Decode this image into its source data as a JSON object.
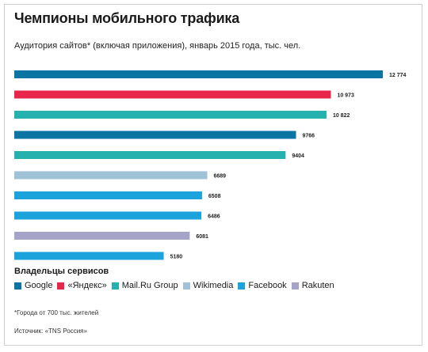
{
  "header": {
    "title": "Чемпионы мобильного трафика",
    "subtitle": "Аудитория сайтов* (включая приложения), январь 2015 года, тыс. чел."
  },
  "legend": {
    "title": "Владельцы сервисов",
    "items": [
      {
        "label": "Google",
        "color": "#0a74a3"
      },
      {
        "label": "«Яндекс»",
        "color": "#e8254b"
      },
      {
        "label": "Mail.Ru Group",
        "color": "#25b2ae"
      },
      {
        "label": "Wikimedia",
        "color": "#9fc2d6"
      },
      {
        "label": "Facebook",
        "color": "#1ca3dc"
      },
      {
        "label": "Rakuten",
        "color": "#a5a3c8"
      }
    ]
  },
  "footnote": "*Города от 700 тыс. жителей",
  "source": "Источник: «TNS Россия»",
  "chart_data": {
    "type": "bar",
    "orientation": "horizontal",
    "categories": [
      "Google",
      "«Яндекс»",
      "Mail.Ru Group",
      "Google",
      "Mail.Ru Group",
      "Wikimedia",
      "Facebook",
      "Facebook",
      "Rakuten",
      "Facebook"
    ],
    "values": [
      12774,
      10973,
      10822,
      9766,
      9404,
      6689,
      6508,
      6486,
      6081,
      5180
    ],
    "value_labels": [
      "12 774",
      "10 973",
      "10 822",
      "9766",
      "9404",
      "6689",
      "6508",
      "6486",
      "6081",
      "5180"
    ],
    "colors": [
      "#0a74a3",
      "#e8254b",
      "#25b2ae",
      "#0a74a3",
      "#25b2ae",
      "#9fc2d6",
      "#1ca3dc",
      "#1ca3dc",
      "#a5a3c8",
      "#1ca3dc"
    ],
    "xlim": [
      0,
      12774
    ],
    "grid": false,
    "legend_position": "bottom"
  }
}
